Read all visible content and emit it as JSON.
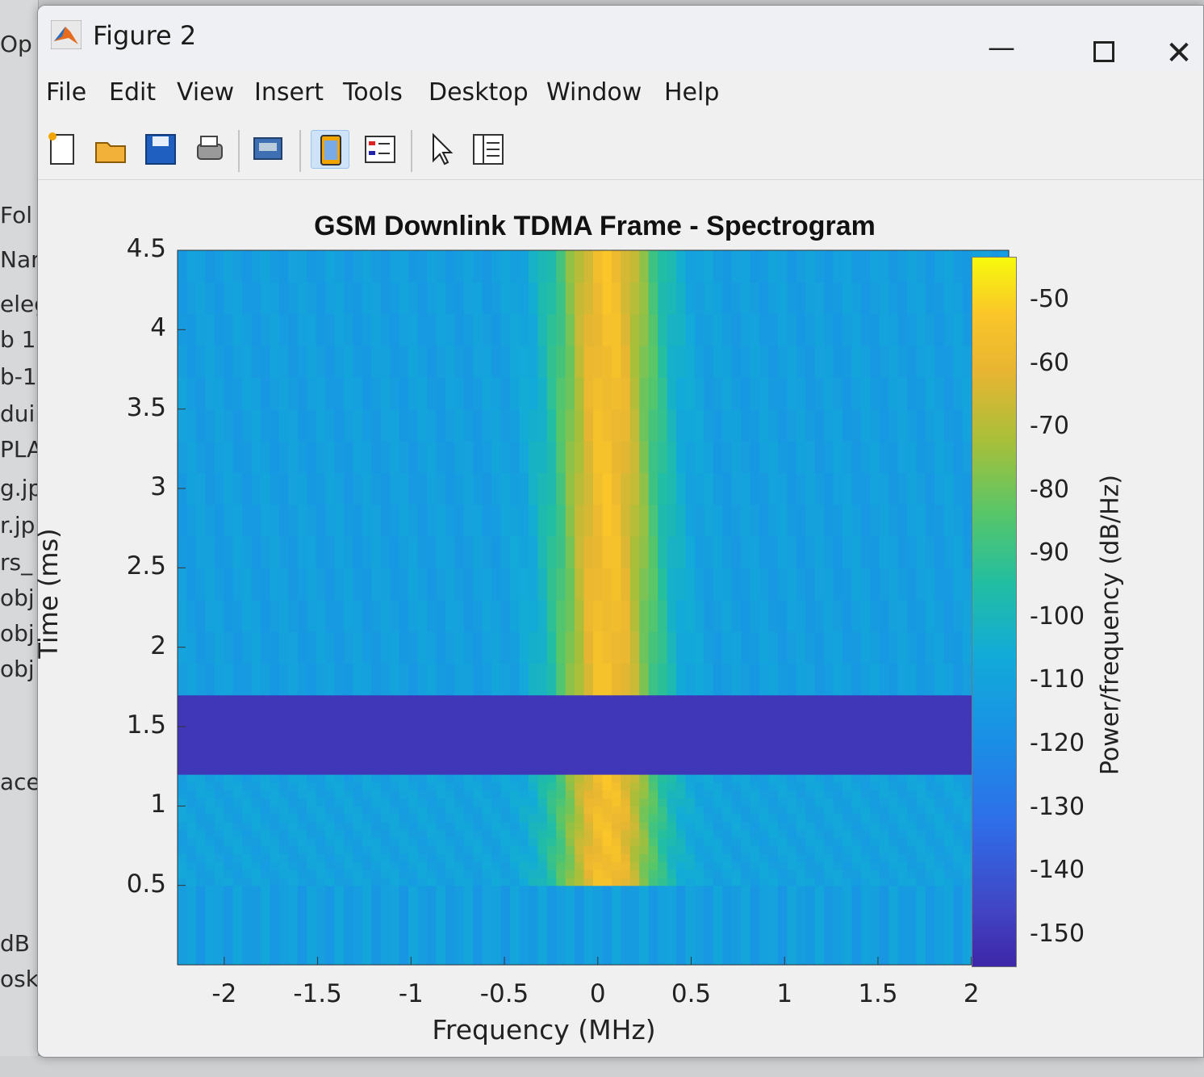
{
  "window": {
    "title": "Figure 2",
    "controls": {
      "minimize": "—",
      "close": "✕"
    }
  },
  "menu": [
    "File",
    "Edit",
    "View",
    "Insert",
    "Tools",
    "Desktop",
    "Window",
    "Help"
  ],
  "toolbar": [
    {
      "name": "new-figure-icon"
    },
    {
      "name": "open-file-icon"
    },
    {
      "name": "save-icon"
    },
    {
      "name": "print-icon"
    },
    {
      "name": "link-figure-icon"
    },
    {
      "name": "dock-figure-icon"
    },
    {
      "name": "insert-legend-icon"
    },
    {
      "name": "pointer-icon"
    },
    {
      "name": "property-inspector-icon"
    }
  ],
  "background_fragments": [
    "Op",
    "Fol",
    "Nam",
    "eleg",
    "b 1",
    "b-1",
    "dui",
    "PLA",
    "g.jp",
    "r.jp",
    "rs_",
    "obj",
    "obj",
    "obj",
    "ace",
    "dB",
    "osk"
  ],
  "colors": {
    "accent": "#0072bd",
    "colormap": "parula"
  },
  "chart_data": {
    "type": "heatmap",
    "title": "GSM Downlink TDMA Frame - Spectrogram",
    "xlabel": "Frequency (MHz)",
    "ylabel": "Time (ms)",
    "colorbar_label": "Power/frequency (dB/Hz)",
    "xlim": [
      -2.25,
      2.2
    ],
    "ylim": [
      0,
      4.5
    ],
    "xticks": [
      -2,
      -1.5,
      -1,
      -0.5,
      0,
      0.5,
      1,
      1.5,
      2
    ],
    "xtick_labels": [
      "-2",
      "-1.5",
      "-1",
      "-0.5",
      "0",
      "0.5",
      "1",
      "1.5",
      "2"
    ],
    "yticks": [
      0.5,
      1,
      1.5,
      2,
      2.5,
      3,
      3.5,
      4,
      4.5
    ],
    "ytick_labels": [
      "0.5",
      "1",
      "1.5",
      "2",
      "2.5",
      "3",
      "3.5",
      "4",
      "4.5"
    ],
    "clim": [
      -155,
      -43
    ],
    "colorbar_ticks": [
      -50,
      -60,
      -70,
      -80,
      -90,
      -100,
      -110,
      -120,
      -130,
      -140,
      -150
    ],
    "colorbar_tick_labels": [
      "-50",
      "-60",
      "-70",
      "-80",
      "-90",
      "-100",
      "-110",
      "-120",
      "-130",
      "-140",
      "-150"
    ],
    "regions": [
      {
        "t": [
          0,
          0.5
        ],
        "f": [
          -2.25,
          2.2
        ],
        "power": -112
      },
      {
        "t": [
          0.5,
          1.2
        ],
        "f": [
          -2.25,
          2.2
        ],
        "power": -110
      },
      {
        "t": [
          1.2,
          1.7
        ],
        "f": [
          -2.25,
          2.2
        ],
        "power": -150
      },
      {
        "t": [
          1.7,
          4.5
        ],
        "f": [
          -2.25,
          2.2
        ],
        "power": -112
      }
    ],
    "signal_band": {
      "center_mhz": 0.05,
      "peak_power": -55,
      "bandwidth_mhz": 0.35,
      "active_t": [
        [
          0.5,
          1.2
        ],
        [
          1.7,
          4.5
        ]
      ]
    }
  }
}
